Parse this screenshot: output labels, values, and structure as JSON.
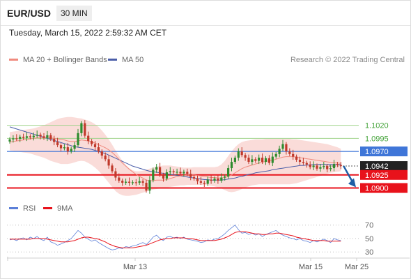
{
  "header": {
    "pair": "EUR/USD",
    "timeframe": "30 MIN",
    "date": "Tuesday, March 15, 2022 2:59:32 AM CET"
  },
  "legend": {
    "bollinger": "MA 20 + Bollinger Bands",
    "ma50": "MA 50",
    "rsi": "RSI",
    "rsi_ma": "9MA"
  },
  "watermark": "Research © 2022 Trading Central",
  "colors": {
    "up": "#2e8b2e",
    "down": "#c0392b",
    "ma20": "#f08a7e",
    "ma50": "#4a5da8",
    "bands": "#f9d3d0",
    "rsi": "#5b7fd8",
    "support": "#e8121b",
    "resistance": "#9fd28a",
    "pivot": "#3f76d8",
    "arrow": "#1f5fa6",
    "price": "#222222"
  },
  "chart_data": {
    "type": "candlestick",
    "ylim": [
      1.0882,
      1.1133
    ],
    "x_ticks": [
      "Mar 13",
      "Mar 15",
      "Mar 25"
    ],
    "levels": [
      {
        "value": 1.102,
        "label": "1.1020",
        "kind": "resistance"
      },
      {
        "value": 1.0995,
        "label": "1.0995",
        "kind": "resistance"
      },
      {
        "value": 1.097,
        "label": "1.0970",
        "kind": "pivot"
      },
      {
        "value": 1.0942,
        "label": "1.0942",
        "kind": "price"
      },
      {
        "value": 1.0925,
        "label": "1.0925",
        "kind": "support"
      },
      {
        "value": 1.09,
        "label": "1.0900",
        "kind": "support"
      }
    ],
    "candles_close": [
      1.0993,
      1.0995,
      1.0994,
      1.0998,
      1.0996,
      1.0999,
      1.0997,
      1.1,
      1.1002,
      1.0999,
      1.0996,
      1.1001,
      1.0994,
      1.0988,
      1.0982,
      1.0976,
      1.0978,
      1.097,
      1.0975,
      1.0982,
      1.1005,
      1.1024,
      1.1,
      1.099,
      1.0984,
      1.0978,
      1.097,
      1.0962,
      1.0955,
      1.0943,
      1.0932,
      1.092,
      1.0914,
      1.091,
      1.0912,
      1.091,
      1.0911,
      1.091,
      1.0913,
      1.091,
      1.0895,
      1.0915,
      1.0935,
      1.094,
      1.0925,
      1.0918,
      1.093,
      1.0932,
      1.093,
      1.0931,
      1.0928,
      1.0931,
      1.0927,
      1.0921,
      1.0918,
      1.0913,
      1.091,
      1.0908,
      1.0916,
      1.0914,
      1.0918,
      1.0914,
      1.092,
      1.0922,
      1.0938,
      1.095,
      1.0958,
      1.097,
      1.0963,
      1.0958,
      1.095,
      1.0955,
      1.0952,
      1.0958,
      1.095,
      1.0957,
      1.0948,
      1.096,
      1.0965,
      1.0975,
      1.0984,
      1.097,
      1.0965,
      1.096,
      1.0954,
      1.095,
      1.0948,
      1.0945,
      1.094,
      1.0943,
      1.0937,
      1.094,
      1.0942,
      1.0936,
      1.0938,
      1.0946,
      1.0944,
      1.0942
    ],
    "ma20": [
      1.0988,
      1.0989,
      1.099,
      1.0991,
      1.0992,
      1.0993,
      1.0994,
      1.0995,
      1.0996,
      1.0996,
      1.0996,
      1.0997,
      1.0996,
      1.0995,
      1.0994,
      1.0993,
      1.0992,
      1.099,
      1.0989,
      1.0989,
      1.099,
      1.0992,
      1.0991,
      1.099,
      1.0988,
      1.0986,
      1.0983,
      1.098,
      1.0977,
      1.0973,
      1.0968,
      1.0962,
      1.0955,
      1.0948,
      1.0942,
      1.0936,
      1.0931,
      1.0926,
      1.0922,
      1.0919,
      1.0915,
      1.0914,
      1.0914,
      1.0915,
      1.0915,
      1.0915,
      1.0916,
      1.0918,
      1.092,
      1.0922,
      1.0923,
      1.0924,
      1.0925,
      1.0925,
      1.0925,
      1.0924,
      1.0923,
      1.0922,
      1.0921,
      1.092,
      1.092,
      1.0919,
      1.0919,
      1.092,
      1.0922,
      1.0925,
      1.0929,
      1.0933,
      1.0937,
      1.094,
      1.0942,
      1.0944,
      1.0946,
      1.0948,
      1.0949,
      1.0951,
      1.0952,
      1.0953,
      1.0955,
      1.0957,
      1.0959,
      1.096,
      1.096,
      1.096,
      1.0959,
      1.0958,
      1.0957,
      1.0956,
      1.0955,
      1.0954,
      1.0953,
      1.0952,
      1.0951,
      1.095,
      1.0949,
      1.0948,
      1.0948,
      1.0947
    ],
    "ma50": [
      1.1017,
      1.1015,
      1.1013,
      1.1011,
      1.1009,
      1.1007,
      1.1005,
      1.1003,
      1.1001,
      1.0999,
      1.0997,
      1.0995,
      1.0993,
      1.0991,
      1.0989,
      1.0987,
      1.0985,
      1.0983,
      1.0981,
      1.0979,
      1.0978,
      1.0977,
      1.0976,
      1.0975,
      1.0974,
      1.0972,
      1.097,
      1.0968,
      1.0966,
      1.0963,
      1.096,
      1.0957,
      1.0954,
      1.0951,
      1.0948,
      1.0945,
      1.0942,
      1.094,
      1.0938,
      1.0936,
      1.0934,
      1.0932,
      1.0931,
      1.093,
      1.0929,
      1.0928,
      1.0927,
      1.0926,
      1.0925,
      1.0924,
      1.0923,
      1.0922,
      1.0921,
      1.092,
      1.0919,
      1.0918,
      1.0917,
      1.0916,
      1.0916,
      1.0915,
      1.0915,
      1.0915,
      1.0915,
      1.0916,
      1.0917,
      1.0918,
      1.0919,
      1.0921,
      1.0922,
      1.0924,
      1.0926,
      1.0927,
      1.0929,
      1.093,
      1.0931,
      1.0932,
      1.0933,
      1.0935,
      1.0936,
      1.0937,
      1.0938,
      1.0939,
      1.094,
      1.0941,
      1.0942,
      1.0943,
      1.0943,
      1.0944,
      1.0944,
      1.0945,
      1.0945,
      1.0945,
      1.0945,
      1.0945,
      1.0945,
      1.0945,
      1.0945,
      1.0945
    ],
    "band_upper": [
      1.1007,
      1.1008,
      1.1009,
      1.101,
      1.1011,
      1.1012,
      1.1013,
      1.1014,
      1.1016,
      1.1018,
      1.102,
      1.1023,
      1.1026,
      1.1029,
      1.1032,
      1.1034,
      1.1035,
      1.1036,
      1.1036,
      1.1035,
      1.1034,
      1.1033,
      1.1031,
      1.1029,
      1.1026,
      1.1022,
      1.1017,
      1.101,
      1.1002,
      1.0993,
      1.0983,
      1.0972,
      1.0962,
      1.0952,
      1.0944,
      1.0938,
      1.0934,
      1.0932,
      1.0932,
      1.0933,
      1.0935,
      1.0937,
      1.0939,
      1.0941,
      1.0942,
      1.0943,
      1.0943,
      1.0943,
      1.0942,
      1.0941,
      1.094,
      1.0939,
      1.0939,
      1.0939,
      1.094,
      1.094,
      1.094,
      1.094,
      1.094,
      1.094,
      1.094,
      1.0941,
      1.0945,
      1.0952,
      1.0961,
      1.097,
      1.0978,
      1.0984,
      1.0988,
      1.099,
      1.0991,
      1.0992,
      1.0993,
      1.0993,
      1.0993,
      1.0994,
      1.0994,
      1.0994,
      1.0994,
      1.0994,
      1.0994,
      1.0994,
      1.0994,
      1.0993,
      1.0993,
      1.0992,
      1.0991,
      1.099,
      1.0989,
      1.0988,
      1.0987,
      1.0986,
      1.0985,
      1.0984,
      1.0982,
      1.098,
      1.0978,
      1.0975
    ],
    "band_lower": [
      1.0972,
      1.0971,
      1.097,
      1.0969,
      1.0968,
      1.0967,
      1.0966,
      1.0964,
      1.0962,
      1.096,
      1.0958,
      1.0955,
      1.0952,
      1.095,
      1.0948,
      1.0946,
      1.0946,
      1.0946,
      1.0947,
      1.0949,
      1.0951,
      1.0952,
      1.0951,
      1.0948,
      1.0944,
      1.0939,
      1.0933,
      1.0926,
      1.0918,
      1.091,
      1.0902,
      1.0894,
      1.0889,
      1.0886,
      1.0885,
      1.0885,
      1.0886,
      1.0887,
      1.0889,
      1.0891,
      1.0893,
      1.0895,
      1.0897,
      1.0898,
      1.0899,
      1.09,
      1.0901,
      1.0902,
      1.0903,
      1.0904,
      1.0905,
      1.0905,
      1.0906,
      1.0906,
      1.0906,
      1.0906,
      1.0906,
      1.0906,
      1.0905,
      1.0904,
      1.0903,
      1.0901,
      1.0899,
      1.0896,
      1.0893,
      1.0892,
      1.0893,
      1.0895,
      1.0898,
      1.0901,
      1.0903,
      1.0905,
      1.0906,
      1.0907,
      1.0907,
      1.0907,
      1.0907,
      1.0907,
      1.0907,
      1.0907,
      1.0907,
      1.0907,
      1.0907,
      1.0908,
      1.0909,
      1.0911,
      1.0913,
      1.0915,
      1.0917,
      1.0919,
      1.0921,
      1.0923,
      1.0925,
      1.0927,
      1.0929,
      1.093,
      1.0931,
      1.0932
    ],
    "projection": {
      "to": 1.0904
    },
    "rsi": {
      "ticks": [
        70,
        50,
        30
      ],
      "ylim": [
        24,
        78
      ],
      "values": [
        48,
        49,
        47,
        50,
        51,
        48,
        52,
        50,
        53,
        49,
        47,
        52,
        45,
        43,
        40,
        42,
        44,
        47,
        50,
        56,
        62,
        58,
        52,
        49,
        46,
        48,
        44,
        41,
        38,
        35,
        33,
        34,
        36,
        35,
        38,
        37,
        39,
        40,
        42,
        44,
        41,
        46,
        52,
        55,
        50,
        47,
        52,
        53,
        51,
        52,
        50,
        52,
        49,
        48,
        47,
        46,
        44,
        45,
        48,
        47,
        49,
        50,
        53,
        57,
        62,
        66,
        70,
        63,
        58,
        59,
        56,
        58,
        55,
        57,
        53,
        56,
        58,
        60,
        62,
        58,
        55,
        53,
        51,
        50,
        48,
        50,
        47,
        46,
        44,
        47,
        45,
        47,
        49,
        47,
        44,
        50,
        48,
        47
      ],
      "ma": [
        49,
        49,
        49,
        49,
        49,
        49,
        49,
        50,
        50,
        50,
        50,
        49,
        48,
        47,
        46,
        45,
        45,
        45,
        46,
        47,
        49,
        51,
        52,
        52,
        51,
        50,
        49,
        47,
        45,
        42,
        40,
        38,
        37,
        36,
        36,
        36,
        36,
        37,
        38,
        39,
        40,
        42,
        44,
        46,
        48,
        49,
        50,
        50,
        51,
        51,
        51,
        51,
        50,
        50,
        49,
        48,
        47,
        47,
        47,
        47,
        47,
        48,
        49,
        51,
        53,
        56,
        59,
        60,
        60,
        60,
        59,
        58,
        57,
        57,
        56,
        56,
        57,
        57,
        58,
        58,
        57,
        56,
        55,
        54,
        52,
        51,
        50,
        49,
        48,
        47,
        47,
        47,
        47,
        46,
        46,
        46,
        46,
        46
      ]
    }
  }
}
